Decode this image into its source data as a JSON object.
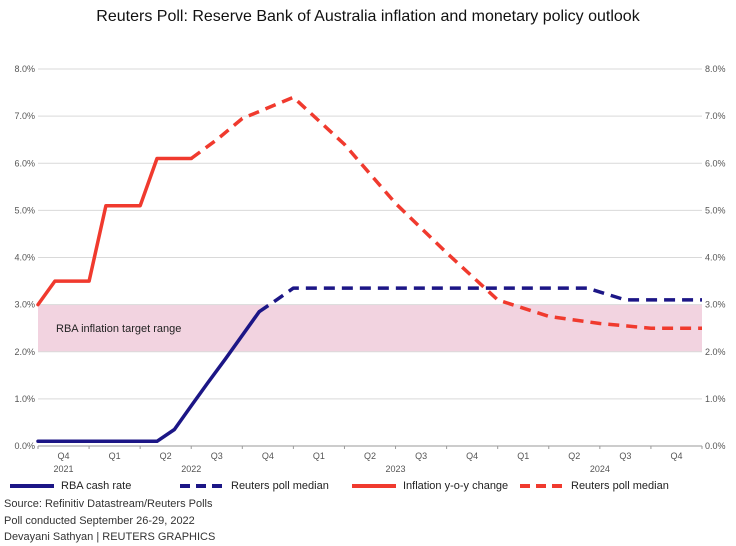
{
  "chart_data": {
    "type": "line",
    "title": "Reuters Poll: Reserve Bank of Australia inflation and monetary policy outlook",
    "y_ticks": [
      "0.0%",
      "1.0%",
      "2.0%",
      "3.0%",
      "4.0%",
      "5.0%",
      "6.0%",
      "7.0%",
      "8.0%"
    ],
    "ylim": [
      0,
      8
    ],
    "xlim": [
      0,
      13
    ],
    "quarter_labels": [
      {
        "x": 0.5,
        "label": "Q4"
      },
      {
        "x": 1.5,
        "label": "Q1"
      },
      {
        "x": 2.5,
        "label": "Q2"
      },
      {
        "x": 3.5,
        "label": "Q3"
      },
      {
        "x": 4.5,
        "label": "Q4"
      },
      {
        "x": 5.5,
        "label": "Q1"
      },
      {
        "x": 6.5,
        "label": "Q2"
      },
      {
        "x": 7.5,
        "label": "Q3"
      },
      {
        "x": 8.5,
        "label": "Q4"
      },
      {
        "x": 9.5,
        "label": "Q1"
      },
      {
        "x": 10.5,
        "label": "Q2"
      },
      {
        "x": 11.5,
        "label": "Q3"
      },
      {
        "x": 12.5,
        "label": "Q4"
      }
    ],
    "year_labels": [
      {
        "x": 0.5,
        "label": "2021"
      },
      {
        "x": 3.0,
        "label": "2022"
      },
      {
        "x": 7.0,
        "label": "2023"
      },
      {
        "x": 11.0,
        "label": "2024"
      }
    ],
    "band": {
      "from": 2.0,
      "to": 3.0,
      "label": "RBA inflation target range",
      "color": "#f2d3e0"
    },
    "series": [
      {
        "name": "RBA cash rate",
        "color": "#1c1686",
        "dashed": false,
        "x": [
          0,
          1,
          2,
          2.33,
          2.67,
          3.0,
          3.33,
          3.67,
          4.0,
          4.33
        ],
        "values": [
          0.1,
          0.1,
          0.1,
          0.1,
          0.35,
          0.85,
          1.35,
          1.85,
          2.35,
          2.85
        ]
      },
      {
        "name": "Reuters poll median",
        "color": "#1c1686",
        "dashed": true,
        "x": [
          4.33,
          4.67,
          5.0,
          6.0,
          7.0,
          8.0,
          9.0,
          10.0,
          10.75,
          11.5,
          12.0,
          13.0
        ],
        "values": [
          2.85,
          3.1,
          3.35,
          3.35,
          3.35,
          3.35,
          3.35,
          3.35,
          3.35,
          3.1,
          3.1,
          3.1
        ]
      },
      {
        "name": "Inflation y-o-y change",
        "color": "#f03a2e",
        "dashed": false,
        "x": [
          0,
          0.33,
          1.0,
          1.33,
          2.0,
          2.33,
          3.0
        ],
        "values": [
          3.0,
          3.5,
          3.5,
          5.1,
          5.1,
          6.1,
          6.1
        ]
      },
      {
        "name": "Reuters poll median",
        "color": "#f03a2e",
        "dashed": true,
        "x": [
          3.0,
          3.5,
          4.0,
          5.0,
          6.0,
          7.0,
          8.0,
          9.0,
          10.0,
          11.0,
          12.0,
          13.0
        ],
        "values": [
          6.1,
          6.5,
          6.95,
          7.4,
          6.4,
          5.15,
          4.1,
          3.1,
          2.75,
          2.6,
          2.5,
          2.5
        ]
      }
    ]
  },
  "legend": [
    {
      "label": "RBA cash rate",
      "color": "#1c1686",
      "dashed": false
    },
    {
      "label": "Reuters poll median",
      "color": "#1c1686",
      "dashed": true
    },
    {
      "label": "Inflation y-o-y change",
      "color": "#f03a2e",
      "dashed": false
    },
    {
      "label": "Reuters poll median",
      "color": "#f03a2e",
      "dashed": true
    }
  ],
  "footer": {
    "source": "Source: Refinitiv Datastream/Reuters Polls",
    "poll_dates": "Poll conducted September 26-29, 2022",
    "credit": "Devayani Sathyan | REUTERS GRAPHICS"
  }
}
